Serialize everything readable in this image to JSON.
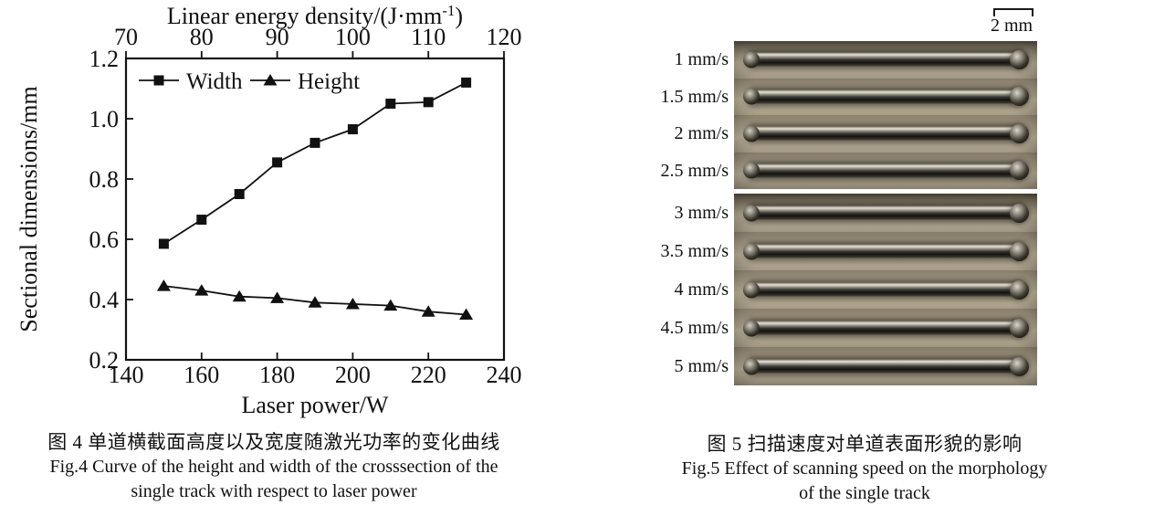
{
  "fig4": {
    "caption_cn": "图 4  单道横截面高度以及宽度随激光功率的变化曲线",
    "caption_en_line1": "Fig.4 Curve of the height and width of the crosssection of the",
    "caption_en_line2": "single track with respect to laser power"
  },
  "chart_data": {
    "type": "line",
    "x": [
      150,
      160,
      170,
      180,
      190,
      200,
      210,
      220,
      230
    ],
    "series": [
      {
        "name": "Width",
        "marker": "square",
        "values": [
          0.585,
          0.665,
          0.75,
          0.855,
          0.92,
          0.965,
          1.05,
          1.055,
          1.12
        ]
      },
      {
        "name": "Height",
        "marker": "triangle",
        "values": [
          0.445,
          0.43,
          0.41,
          0.405,
          0.39,
          0.385,
          0.38,
          0.36,
          0.35
        ]
      }
    ],
    "xlabel": "Laser power/W",
    "xlabel_top": "Linear energy density/(J·mm⁻¹)",
    "ylabel": "Sectional dimensions/mm",
    "xlim": [
      140,
      240
    ],
    "xticks": [
      140,
      160,
      180,
      200,
      220,
      240
    ],
    "xlim_top": [
      70,
      120
    ],
    "xticks_top": [
      70,
      80,
      90,
      100,
      110,
      120
    ],
    "ylim": [
      0.2,
      1.2
    ],
    "yticks": [
      "0.2",
      "0.4",
      "0.6",
      "0.8",
      "1.0",
      "1.2"
    ],
    "legend": [
      "Width",
      "Height"
    ],
    "legend_position": "top-left-inside",
    "grid": false,
    "line_color": "#111111"
  },
  "fig5": {
    "scale_bar_label": "2 mm",
    "panels": [
      {
        "tracks": [
          "1 mm/s",
          "1.5 mm/s",
          "2 mm/s",
          "2.5 mm/s"
        ]
      },
      {
        "tracks": [
          "3 mm/s",
          "3.5 mm/s",
          "4 mm/s",
          "4.5 mm/s",
          "5 mm/s"
        ]
      }
    ],
    "caption_cn": "图 5  扫描速度对单道表面形貌的影响",
    "caption_en_line1": "Fig.5 Effect of scanning speed on the morphology",
    "caption_en_line2": "of the single track"
  }
}
